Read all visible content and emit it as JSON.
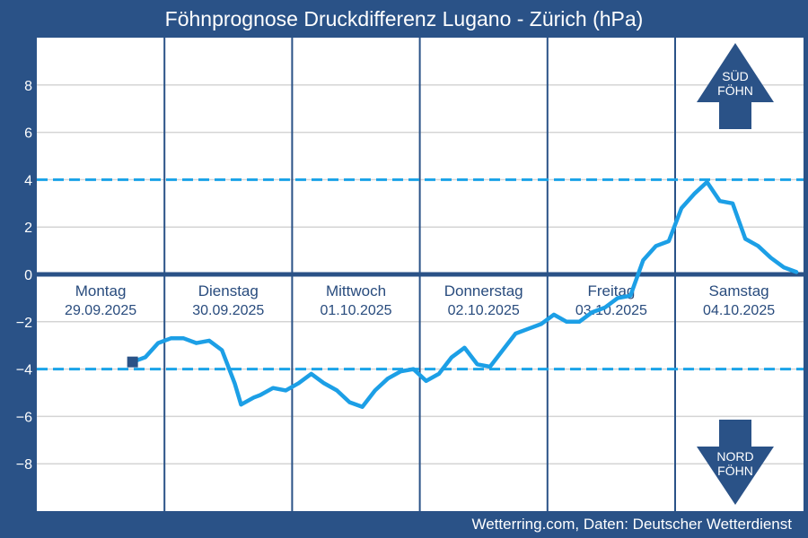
{
  "chart_data": {
    "type": "line",
    "title": "Föhnprognose Druckdifferenz Lugano - Zürich (hPa)",
    "source": "Wetterring.com, Daten: Deutscher Wetterdienst",
    "xlabel": "",
    "ylabel": "",
    "ylim": [
      -10,
      10
    ],
    "y_ticks": [
      -8,
      -6,
      -4,
      -2,
      0,
      2,
      4,
      6,
      8
    ],
    "y_tick_labels": [
      "−8",
      "−6",
      "−4",
      "−2",
      "0",
      "2",
      "4",
      "6",
      "8"
    ],
    "grid": true,
    "thresholds": [
      4,
      -4
    ],
    "x_unit": "days",
    "days": [
      {
        "name": "Montag",
        "date": "29.09.2025"
      },
      {
        "name": "Dienstag",
        "date": "30.09.2025"
      },
      {
        "name": "Mittwoch",
        "date": "01.10.2025"
      },
      {
        "name": "Donnerstag",
        "date": "02.10.2025"
      },
      {
        "name": "Freitag",
        "date": "03.10.2025"
      },
      {
        "name": "Samstag",
        "date": "04.10.2025"
      }
    ],
    "x_range": [
      0,
      6
    ],
    "series": [
      {
        "color": "#1c9fe6",
        "x": [
          0.75,
          0.85,
          0.95,
          1.05,
          1.15,
          1.25,
          1.35,
          1.45,
          1.55,
          1.6,
          1.7,
          1.75,
          1.85,
          1.95,
          2.05,
          2.15,
          2.25,
          2.35,
          2.45,
          2.55,
          2.65,
          2.75,
          2.85,
          2.95,
          3.05,
          3.15,
          3.25,
          3.35,
          3.45,
          3.55,
          3.65,
          3.75,
          3.85,
          3.95,
          4.05,
          4.15,
          4.25,
          4.35,
          4.45,
          4.55,
          4.65,
          4.75,
          4.85,
          4.95,
          5.05,
          5.15,
          5.25,
          5.35,
          5.45,
          5.55,
          5.65,
          5.75,
          5.8,
          5.85,
          5.95
        ],
        "y": [
          -3.7,
          -3.5,
          -2.9,
          -2.7,
          -2.7,
          -2.9,
          -2.8,
          -3.2,
          -4.6,
          -5.5,
          -5.2,
          -5.1,
          -4.8,
          -4.9,
          -4.6,
          -4.2,
          -4.6,
          -4.9,
          -5.4,
          -5.6,
          -4.9,
          -4.4,
          -4.1,
          -4.0,
          -4.5,
          -4.2,
          -3.5,
          -3.1,
          -3.8,
          -3.9,
          -3.2,
          -2.5,
          -2.3,
          -2.1,
          -1.7,
          -2.0,
          -2.0,
          -1.6,
          -1.4,
          -1.0,
          -0.9,
          0.6,
          1.2,
          1.4,
          2.8,
          3.4,
          3.9,
          3.1,
          3.0,
          1.5,
          1.2,
          0.7,
          0.5,
          0.3,
          0.1
        ]
      }
    ],
    "start_marker": {
      "x": 0.75,
      "y": -3.7
    },
    "annotations": [
      {
        "text": "SÜD\nFÖHN",
        "direction": "up",
        "color": "#2a5287"
      },
      {
        "text": "NORD\nFÖHN",
        "direction": "down",
        "color": "#2a5287"
      }
    ]
  }
}
